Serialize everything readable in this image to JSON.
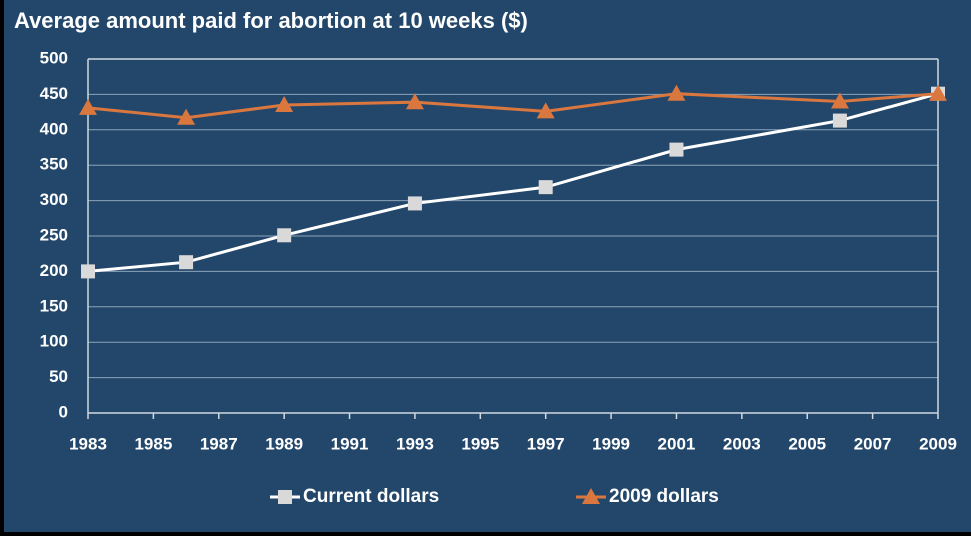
{
  "chart_data": {
    "type": "line",
    "title": "Average amount paid for abortion at 10 weeks ($)",
    "x": [
      1983,
      1986,
      1989,
      1993,
      1997,
      2001,
      2006,
      2009
    ],
    "series": [
      {
        "name": "Current dollars",
        "color": "#ffffff",
        "marker_color": "#d9d9d9",
        "marker": "square",
        "values": [
          200,
          213,
          251,
          296,
          319,
          372,
          413,
          451
        ]
      },
      {
        "name": "2009 dollars",
        "color": "#d9773f",
        "marker_color": "#d9773f",
        "marker": "triangle",
        "values": [
          431,
          417,
          435,
          439,
          426,
          451,
          440,
          451
        ]
      }
    ],
    "xlim": [
      1983,
      2009
    ],
    "xticks": [
      1983,
      1985,
      1987,
      1989,
      1991,
      1993,
      1995,
      1997,
      1999,
      2001,
      2003,
      2005,
      2007,
      2009
    ],
    "ylim": [
      0,
      500
    ],
    "yticks": [
      0,
      50,
      100,
      150,
      200,
      250,
      300,
      350,
      400,
      450,
      500
    ],
    "grid": true,
    "legend": "bottom"
  }
}
